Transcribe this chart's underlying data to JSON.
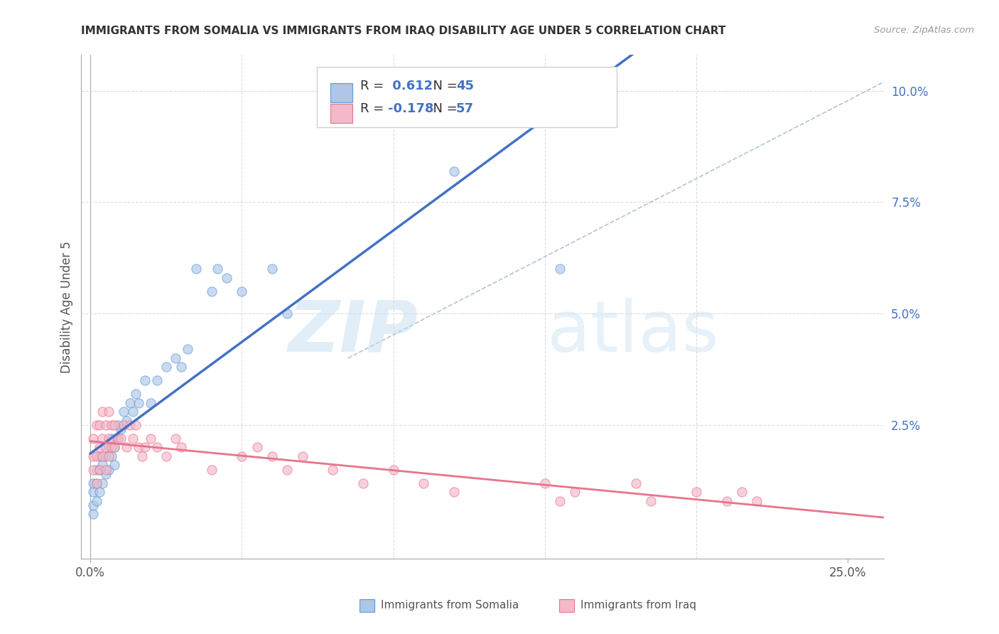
{
  "title": "IMMIGRANTS FROM SOMALIA VS IMMIGRANTS FROM IRAQ DISABILITY AGE UNDER 5 CORRELATION CHART",
  "source": "Source: ZipAtlas.com",
  "ylabel": "Disability Age Under 5",
  "xlim": [
    -0.003,
    0.262
  ],
  "ylim": [
    -0.005,
    0.108
  ],
  "somalia_color": "#aec6e8",
  "somalia_edge_color": "#5b9bd5",
  "iraq_color": "#f4b8c8",
  "iraq_edge_color": "#e8748a",
  "somalia_R": 0.612,
  "somalia_N": 45,
  "iraq_R": -0.178,
  "iraq_N": 57,
  "somalia_line_color": "#4472c4",
  "iraq_line_color": "#e8748a",
  "dashed_line_color": "#b0c4d8",
  "watermark_zip": "ZIP",
  "watermark_atlas": "atlas",
  "legend_somalia_label": "Immigrants from Somalia",
  "legend_iraq_label": "Immigrants from Iraq",
  "marker_size": 90,
  "alpha": 0.65,
  "right_ytick_vals": [
    0.025,
    0.05,
    0.075,
    0.1
  ],
  "right_ytick_labels": [
    "2.5%",
    "5.0%",
    "7.5%",
    "10.0%"
  ],
  "somalia_x": [
    0.001,
    0.001,
    0.001,
    0.001,
    0.002,
    0.002,
    0.002,
    0.003,
    0.003,
    0.003,
    0.004,
    0.004,
    0.005,
    0.005,
    0.006,
    0.006,
    0.007,
    0.007,
    0.008,
    0.008,
    0.009,
    0.009,
    0.01,
    0.011,
    0.012,
    0.013,
    0.014,
    0.015,
    0.016,
    0.018,
    0.02,
    0.022,
    0.025,
    0.028,
    0.03,
    0.032,
    0.035,
    0.04,
    0.042,
    0.045,
    0.05,
    0.06,
    0.065,
    0.12,
    0.155
  ],
  "somalia_y": [
    0.005,
    0.007,
    0.01,
    0.012,
    0.008,
    0.012,
    0.015,
    0.01,
    0.015,
    0.018,
    0.012,
    0.016,
    0.014,
    0.018,
    0.015,
    0.02,
    0.018,
    0.022,
    0.016,
    0.02,
    0.022,
    0.025,
    0.024,
    0.028,
    0.026,
    0.03,
    0.028,
    0.032,
    0.03,
    0.035,
    0.03,
    0.035,
    0.038,
    0.04,
    0.038,
    0.042,
    0.06,
    0.055,
    0.06,
    0.058,
    0.055,
    0.06,
    0.05,
    0.082,
    0.06
  ],
  "iraq_x": [
    0.001,
    0.001,
    0.001,
    0.002,
    0.002,
    0.002,
    0.003,
    0.003,
    0.003,
    0.004,
    0.004,
    0.004,
    0.005,
    0.005,
    0.005,
    0.006,
    0.006,
    0.006,
    0.007,
    0.007,
    0.008,
    0.008,
    0.009,
    0.01,
    0.011,
    0.012,
    0.013,
    0.014,
    0.015,
    0.016,
    0.017,
    0.018,
    0.02,
    0.022,
    0.025,
    0.028,
    0.03,
    0.04,
    0.05,
    0.055,
    0.06,
    0.065,
    0.07,
    0.08,
    0.09,
    0.1,
    0.11,
    0.12,
    0.15,
    0.155,
    0.16,
    0.18,
    0.185,
    0.2,
    0.21,
    0.215,
    0.22
  ],
  "iraq_y": [
    0.015,
    0.018,
    0.022,
    0.012,
    0.018,
    0.025,
    0.015,
    0.02,
    0.025,
    0.018,
    0.022,
    0.028,
    0.015,
    0.02,
    0.025,
    0.018,
    0.022,
    0.028,
    0.02,
    0.025,
    0.02,
    0.025,
    0.022,
    0.022,
    0.025,
    0.02,
    0.025,
    0.022,
    0.025,
    0.02,
    0.018,
    0.02,
    0.022,
    0.02,
    0.018,
    0.022,
    0.02,
    0.015,
    0.018,
    0.02,
    0.018,
    0.015,
    0.018,
    0.015,
    0.012,
    0.015,
    0.012,
    0.01,
    0.012,
    0.008,
    0.01,
    0.012,
    0.008,
    0.01,
    0.008,
    0.01,
    0.008
  ],
  "grid_color": "#dddddd"
}
